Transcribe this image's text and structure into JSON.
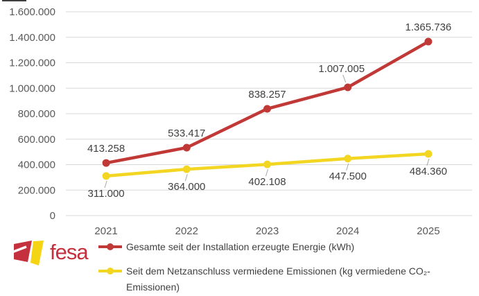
{
  "chart_data": {
    "type": "line",
    "categories": [
      "2021",
      "2022",
      "2023",
      "2024",
      "2025"
    ],
    "series": [
      {
        "name": "Gesamte seit der Installation erzeugte Energie (kWh)",
        "color": "#c03936",
        "values": [
          413258,
          533417,
          838257,
          1007005,
          1365736
        ],
        "labels": [
          "413.258",
          "533.417",
          "838.257",
          "1.007.005",
          "1.365.736"
        ],
        "label_side": "above",
        "label_overrides": {
          "3": {
            "dx": -9,
            "dy": -22,
            "leader": true
          }
        }
      },
      {
        "name": "Seit dem Netzanschluss vermiedene Emissionen (kg vermiedene CO₂-Emissionen)",
        "color": "#f3d621",
        "values": [
          311000,
          364000,
          402108,
          447500,
          484360
        ],
        "labels": [
          "311.000",
          "364.000",
          "402.108",
          "447.500",
          "484.360"
        ],
        "label_side": "below"
      }
    ],
    "ylim": [
      0,
      1600000
    ],
    "ytick_step": 200000,
    "ytick_labels": [
      "0",
      "200.000",
      "400.000",
      "600.000",
      "800.000",
      "1.000.000",
      "1.200.000",
      "1.400.000",
      "1.600.000"
    ],
    "xlabel": "",
    "ylabel": "",
    "grid": true,
    "legend_position": "bottom",
    "grid_color": "#d9d9d9",
    "axis_text_color": "#595959",
    "data_label_color": "#404040"
  },
  "logo": {
    "text": "fesa",
    "brand_red": "#c5303e",
    "brand_yellow": "#f5d414"
  }
}
